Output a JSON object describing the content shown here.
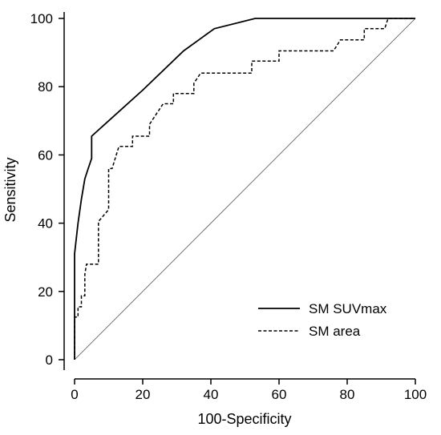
{
  "chart_data": {
    "type": "line",
    "title": "",
    "xlabel": "100-Specificity",
    "ylabel": "Sensitivity",
    "xlim": [
      0,
      100
    ],
    "ylim": [
      0,
      100
    ],
    "xticks": [
      "0",
      "20",
      "40",
      "60",
      "80",
      "100"
    ],
    "yticks": [
      "0",
      "20",
      "40",
      "60",
      "80",
      "100"
    ],
    "grid": false,
    "legend_position": "bottom-right",
    "reference_line": [
      [
        0,
        0
      ],
      [
        100,
        100
      ]
    ],
    "series": [
      {
        "name": "SM SUVmax",
        "style": "solid",
        "points": [
          [
            0,
            0
          ],
          [
            0,
            31
          ],
          [
            1,
            40
          ],
          [
            2,
            47
          ],
          [
            3,
            53
          ],
          [
            4,
            56
          ],
          [
            5,
            59
          ],
          [
            5,
            65.5
          ],
          [
            10,
            70
          ],
          [
            20,
            79
          ],
          [
            32,
            90.5
          ],
          [
            41,
            97
          ],
          [
            53,
            100
          ],
          [
            100,
            100
          ]
        ]
      },
      {
        "name": "SM area",
        "style": "dashed",
        "points": [
          [
            0,
            0
          ],
          [
            0,
            12.5
          ],
          [
            1,
            12.5
          ],
          [
            1,
            15.5
          ],
          [
            2,
            15.5
          ],
          [
            2,
            18.7
          ],
          [
            3,
            18.7
          ],
          [
            3,
            25
          ],
          [
            3.5,
            28
          ],
          [
            7,
            28
          ],
          [
            7,
            40.5
          ],
          [
            10,
            44
          ],
          [
            10,
            56
          ],
          [
            11,
            56
          ],
          [
            13,
            62.5
          ],
          [
            17,
            62.5
          ],
          [
            17,
            65.5
          ],
          [
            22,
            65.5
          ],
          [
            22,
            69
          ],
          [
            24,
            72
          ],
          [
            26,
            75
          ],
          [
            29,
            75
          ],
          [
            29,
            78
          ],
          [
            35,
            78
          ],
          [
            35,
            81
          ],
          [
            37,
            84
          ],
          [
            52,
            84
          ],
          [
            52,
            87.5
          ],
          [
            60,
            87.5
          ],
          [
            60,
            90.5
          ],
          [
            76,
            90.5
          ],
          [
            78,
            93.7
          ],
          [
            85,
            93.7
          ],
          [
            85,
            97
          ],
          [
            91,
            97
          ],
          [
            92,
            100
          ],
          [
            100,
            100
          ]
        ]
      }
    ]
  },
  "colors": {
    "axis": "#000000",
    "series": "#000000",
    "reference": "#555555"
  }
}
